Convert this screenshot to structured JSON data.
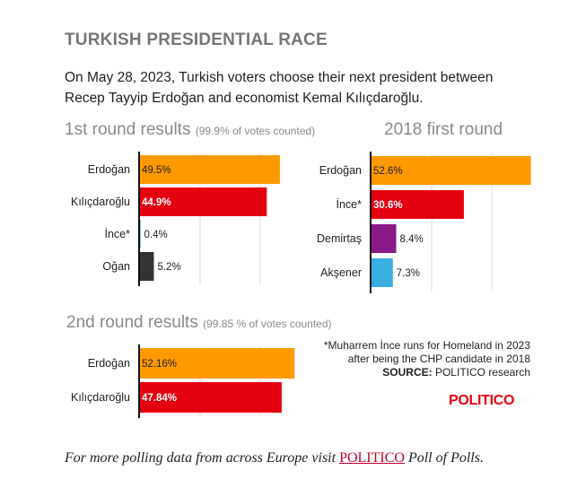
{
  "header": {
    "title": "TURKISH PRESIDENTIAL RACE",
    "intro": "On May 28, 2023, Turkish voters choose their next president between Recep Tayyip Erdoğan and economist Kemal Kılıçdaroğlu."
  },
  "chart_data": [
    {
      "type": "bar",
      "orientation": "horizontal",
      "title": "1st round results",
      "subtitle": "(99.9% of votes counted)",
      "categories": [
        "Erdoğan",
        "Kılıçdaroğlu",
        "İnce*",
        "Oğan"
      ],
      "values": [
        49.5,
        44.9,
        0.4,
        5.2
      ],
      "labels": [
        "49.5%",
        "44.9%",
        "0.4%",
        "5.2%"
      ],
      "colors": [
        "#ff9900",
        "#e3000f",
        "#1f77b4",
        "#333333"
      ],
      "label_colors": [
        "#222222",
        "#ffffff",
        "#222222",
        "#222222"
      ],
      "label_bold": [
        false,
        true,
        false,
        false
      ],
      "xlim": [
        0,
        53
      ],
      "grid": true
    },
    {
      "type": "bar",
      "orientation": "horizontal",
      "title": "2018 first round",
      "subtitle": "",
      "categories": [
        "Erdoğan",
        "İnce*",
        "Demirtaş",
        "Akşener"
      ],
      "values": [
        52.6,
        30.6,
        8.4,
        7.3
      ],
      "labels": [
        "52.6%",
        "30.6%",
        "8.4%",
        "7.3%"
      ],
      "colors": [
        "#ff9900",
        "#e3000f",
        "#8b1a89",
        "#3aaee0"
      ],
      "label_colors": [
        "#222222",
        "#ffffff",
        "#222222",
        "#222222"
      ],
      "label_bold": [
        false,
        true,
        false,
        false
      ],
      "xlim": [
        0,
        53
      ],
      "grid": true
    },
    {
      "type": "bar",
      "orientation": "horizontal",
      "title": "2nd round results",
      "subtitle": "(99.85 % of votes counted)",
      "categories": [
        "Erdoğan",
        "Kılıçdaroğlu"
      ],
      "values": [
        52.16,
        47.84
      ],
      "labels": [
        "52.16%",
        "47.84%"
      ],
      "colors": [
        "#ff9900",
        "#e3000f"
      ],
      "label_colors": [
        "#222222",
        "#ffffff"
      ],
      "label_bold": [
        false,
        true
      ],
      "xlim": [
        0,
        53
      ],
      "grid": true
    }
  ],
  "footnote": {
    "line1": "*Muharrem İnce runs for Homeland in 2023",
    "line2": "after being the CHP candidate in 2018",
    "source_label": "SOURCE:",
    "source_text": "POLITICO research"
  },
  "logo": {
    "text": "POLITICO"
  },
  "footer": {
    "text_before": "For more polling data from across Europe visit ",
    "link_text": "POLITICO",
    "text_after": " Poll of Polls",
    "end": "."
  }
}
